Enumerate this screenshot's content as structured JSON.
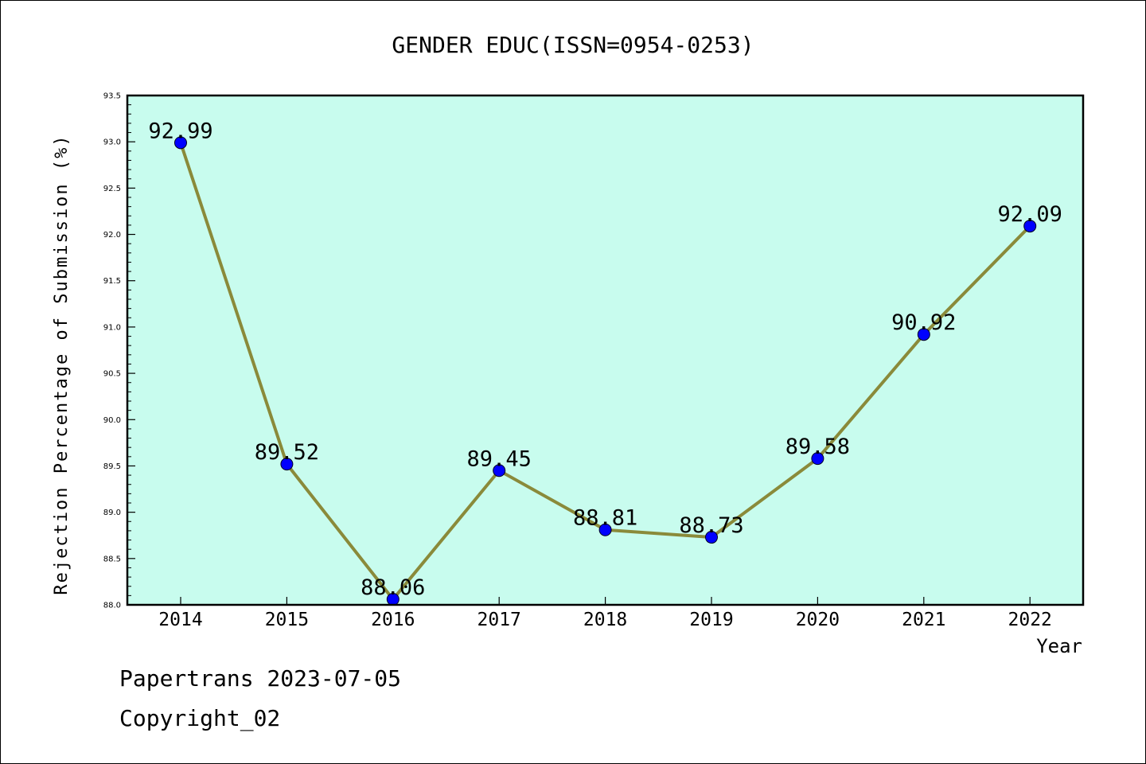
{
  "chart_data": {
    "type": "line",
    "title": "GENDER EDUC(ISSN=0954-0253)",
    "xlabel": "Year",
    "ylabel": "Rejection Percentage of Submission (%)",
    "categories": [
      "2014",
      "2015",
      "2016",
      "2017",
      "2018",
      "2019",
      "2020",
      "2021",
      "2022"
    ],
    "values": [
      92.99,
      89.52,
      88.06,
      89.45,
      88.81,
      88.73,
      89.58,
      90.92,
      92.09
    ],
    "data_labels": [
      "92.99",
      "89.52",
      "88.06",
      "89.45",
      "88.81",
      "88.73",
      "89.58",
      "90.92",
      "92.09"
    ],
    "ylim": [
      88.0,
      93.5
    ],
    "y_ticks": [
      "88.0",
      "88.5",
      "89.0",
      "89.5",
      "90.0",
      "90.5",
      "91.0",
      "91.5",
      "92.0",
      "92.5",
      "93.0",
      "93.5"
    ],
    "grid": false,
    "colors": {
      "plot_background": "#c8fcee",
      "line": "#8a8a3a",
      "marker": "#0000ff"
    }
  },
  "footer": {
    "line1": "Papertrans 2023-07-05",
    "line2": "Copyright_02"
  }
}
